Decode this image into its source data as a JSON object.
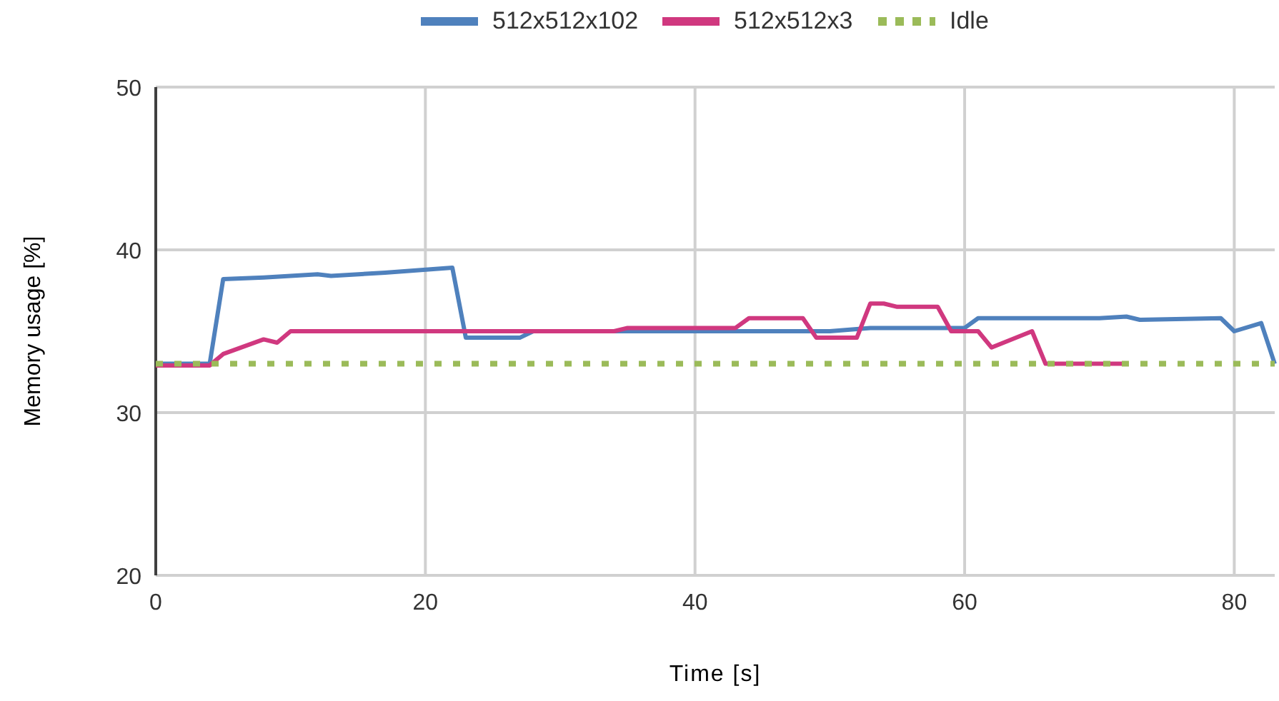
{
  "chart_data": {
    "type": "line",
    "xlabel": "Time [s]",
    "ylabel": "Memory usage [%]",
    "xlim": [
      0,
      83
    ],
    "xticks": [
      0,
      20,
      40,
      60,
      80
    ],
    "ylim": [
      20,
      50
    ],
    "yticks": [
      20,
      30,
      40,
      50
    ],
    "grid": true,
    "legend": "top",
    "line_style": "solid",
    "series": [
      {
        "name": "512x512x102",
        "color": "#4f81bd",
        "x": [
          0,
          4,
          5,
          8,
          12,
          13,
          17,
          22,
          23,
          27,
          28,
          35,
          45,
          50,
          53,
          60,
          61,
          66,
          70,
          72,
          73,
          79,
          80,
          82,
          83
        ],
        "values": [
          33,
          33,
          38.2,
          38.3,
          38.5,
          38.4,
          38.6,
          38.9,
          34.6,
          34.6,
          35,
          35,
          35,
          35,
          35.2,
          35.2,
          35.8,
          35.8,
          35.8,
          35.9,
          35.7,
          35.8,
          35,
          35.5,
          33
        ]
      },
      {
        "name": "512x512x3",
        "color": "#d0387f",
        "x": [
          0,
          4,
          5,
          8,
          9,
          10,
          34,
          35,
          43,
          44,
          48,
          49,
          52,
          53,
          54,
          55,
          58,
          59,
          61,
          62,
          65,
          66,
          72
        ],
        "values": [
          32.9,
          32.9,
          33.6,
          34.5,
          34.3,
          35,
          35,
          35.2,
          35.2,
          35.8,
          35.8,
          34.6,
          34.6,
          36.7,
          36.7,
          36.5,
          36.5,
          35,
          35,
          34,
          35,
          33,
          33
        ]
      },
      {
        "name": "Idle",
        "color": "#9bbb59",
        "line_style": "dotted",
        "x": [
          0,
          83
        ],
        "values": [
          33,
          33
        ]
      }
    ]
  }
}
